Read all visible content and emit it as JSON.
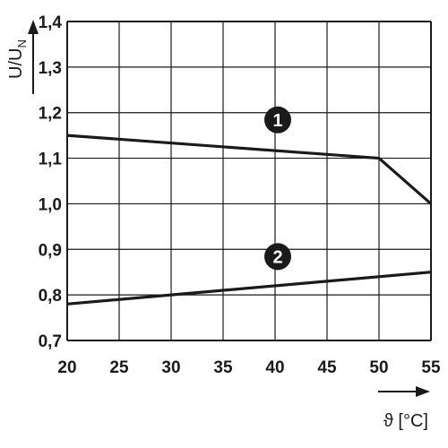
{
  "chart_data": {
    "type": "line",
    "xlabel": "ϑ [°C]",
    "ylabel": "U/U",
    "ylabel_sub": "N",
    "xlim": [
      20,
      55
    ],
    "ylim": [
      0.7,
      1.4
    ],
    "xticks": [
      "20",
      "25",
      "30",
      "35",
      "40",
      "45",
      "50",
      "55"
    ],
    "yticks": [
      "0,7",
      "0,8",
      "0,9",
      "1,0",
      "1,1",
      "1,2",
      "1,3",
      "1,4"
    ],
    "grid": true,
    "series": [
      {
        "name": "1",
        "points": [
          [
            20,
            1.15
          ],
          [
            50,
            1.1
          ],
          [
            55,
            1.0
          ]
        ]
      },
      {
        "name": "2",
        "points": [
          [
            20,
            0.78
          ],
          [
            55,
            0.85
          ]
        ]
      }
    ],
    "annotations": [
      {
        "text": "1",
        "x": 40,
        "y": 1.19
      },
      {
        "text": "2",
        "x": 40,
        "y": 0.89
      }
    ]
  },
  "colors": {
    "line": "#1a1a1a",
    "grid": "#1a1a1a",
    "badge": "#1a1a1a"
  }
}
